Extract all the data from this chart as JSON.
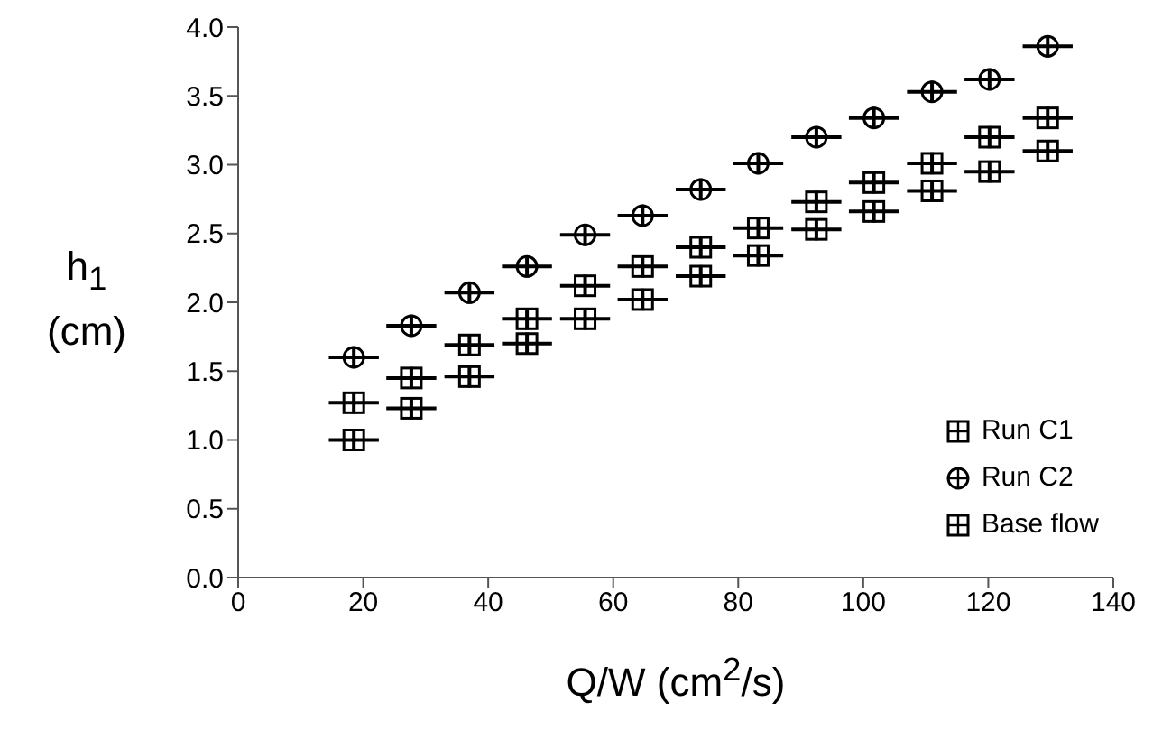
{
  "chart_data": {
    "type": "scatter",
    "xlabel": "Q/W (cm$^{2}$/s)",
    "ylabel": "h$_{1}$\n(cm)",
    "xlim": [
      0,
      140
    ],
    "xticks": [
      0,
      20,
      40,
      60,
      80,
      100,
      120,
      140
    ],
    "ylim": [
      0,
      4
    ],
    "yticks": [
      {
        "value": 0,
        "label": "0.0"
      },
      {
        "value": 0.5,
        "label": "0.5"
      },
      {
        "value": 1,
        "label": "1.0"
      },
      {
        "value": 1.5,
        "label": "1.5"
      },
      {
        "value": 2,
        "label": "2.0"
      },
      {
        "value": 2.5,
        "label": "2.5"
      },
      {
        "value": 3,
        "label": "3.0"
      },
      {
        "value": 3.5,
        "label": "3.5"
      },
      {
        "value": 4,
        "label": "4.0"
      }
    ],
    "grid": false,
    "legend": "bottom right",
    "x": [
      18.5,
      27.7,
      37,
      46.2,
      55.5,
      64.7,
      74,
      83.2,
      92.5,
      101.7,
      111,
      120.2,
      129.5
    ],
    "series": [
      {
        "name": "Run C1",
        "color": "#000000",
        "marker": "square",
        "values": [
          1.27,
          1.45,
          1.69,
          1.88,
          2.12,
          2.26,
          2.4,
          2.54,
          2.73,
          2.87,
          3.01,
          3.2,
          3.34
        ],
        "xerrors": [
          4,
          4,
          4,
          4,
          4,
          4,
          4,
          4,
          4,
          4,
          4,
          4,
          4
        ],
        "errors": [
          0.08,
          0.08,
          0.08,
          0.08,
          0.08,
          0.08,
          0.08,
          0.08,
          0.08,
          0.08,
          0.08,
          0.08,
          0.08
        ]
      },
      {
        "name": "Run C2",
        "color": "#000000",
        "marker": "circle",
        "values": [
          1.6,
          1.83,
          2.07,
          2.26,
          2.49,
          2.63,
          2.82,
          3.01,
          3.2,
          3.34,
          3.53,
          3.62,
          3.86
        ],
        "xerrors": [
          4,
          4,
          4,
          4,
          4,
          4,
          4,
          4,
          4,
          4,
          4,
          4,
          4
        ],
        "errors": [
          0.08,
          0.08,
          0.08,
          0.08,
          0.08,
          0.08,
          0.08,
          0.08,
          0.08,
          0.08,
          0.08,
          0.08,
          0.08
        ]
      },
      {
        "name": "Base flow",
        "color": "#000000",
        "marker": "square",
        "values": [
          1.0,
          1.23,
          1.46,
          1.7,
          1.88,
          2.02,
          2.19,
          2.34,
          2.53,
          2.66,
          2.81,
          2.95,
          3.1
        ],
        "xerrors": [
          4,
          4,
          4,
          4,
          4,
          4,
          4,
          4,
          4,
          4,
          4,
          4,
          4
        ],
        "errors": [
          0.08,
          0.08,
          0.08,
          0.08,
          0.08,
          0.08,
          0.08,
          0.08,
          0.08,
          0.08,
          0.08,
          0.08,
          0.08
        ]
      }
    ]
  }
}
